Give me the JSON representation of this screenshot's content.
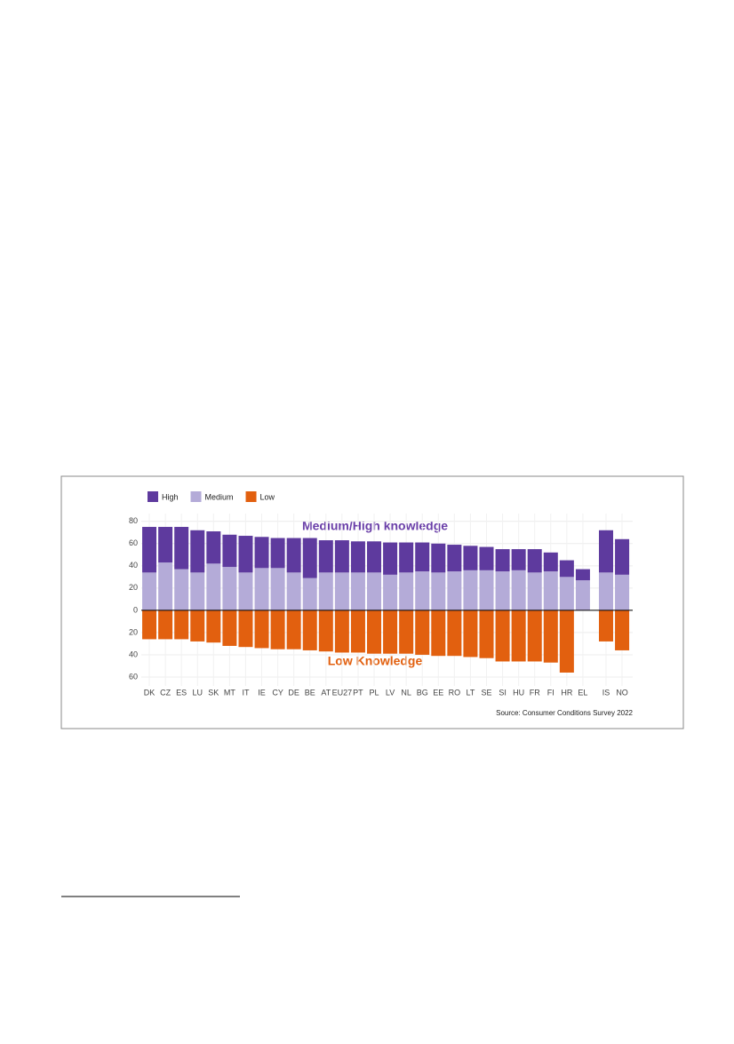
{
  "chart_data": {
    "type": "bar",
    "stacked": true,
    "annotations": [
      "Medium/High knowledge",
      "Low Knowledge"
    ],
    "source": "Source: Consumer Conditions Survey 2022",
    "categories": [
      "DK",
      "CZ",
      "ES",
      "LU",
      "SK",
      "MT",
      "IT",
      "IE",
      "CY",
      "DE",
      "BE",
      "AT",
      "EU27",
      "PT",
      "PL",
      "LV",
      "NL",
      "BG",
      "EE",
      "RO",
      "LT",
      "SE",
      "SI",
      "HU",
      "FR",
      "FI",
      "HR",
      "EL",
      null,
      "IS",
      "NO"
    ],
    "series": [
      {
        "name": "High",
        "color": "#5e3a9e",
        "values": [
          41,
          32,
          38,
          38,
          29,
          29,
          33,
          28,
          27,
          31,
          36,
          29,
          29,
          28,
          28,
          29,
          27,
          26,
          26,
          24,
          22,
          21,
          20,
          19,
          21,
          17,
          15,
          10,
          null,
          38,
          32
        ]
      },
      {
        "name": "Medium",
        "color": "#b4abd8",
        "values": [
          34,
          43,
          37,
          34,
          42,
          39,
          34,
          38,
          38,
          34,
          29,
          34,
          34,
          34,
          34,
          32,
          34,
          35,
          34,
          35,
          36,
          36,
          35,
          36,
          34,
          35,
          30,
          27,
          null,
          34,
          32
        ]
      },
      {
        "name": "Low",
        "color": "#e2600f",
        "values": [
          -26,
          -26,
          -26,
          -28,
          -29,
          -32,
          -33,
          -34,
          -35,
          -35,
          -36,
          -37,
          -38,
          -38,
          -39,
          -39,
          -39,
          -40,
          -41,
          -41,
          -42,
          -43,
          -46,
          -46,
          -46,
          -47,
          -56,
          0,
          null,
          -28,
          -36
        ]
      }
    ],
    "ylim": [
      -68,
      87
    ],
    "yticks": [
      {
        "value": -60,
        "label": "60"
      },
      {
        "value": -40,
        "label": "40"
      },
      {
        "value": -20,
        "label": "20"
      },
      0,
      20,
      40,
      60,
      80
    ],
    "grid": true,
    "legend": "top-left"
  }
}
